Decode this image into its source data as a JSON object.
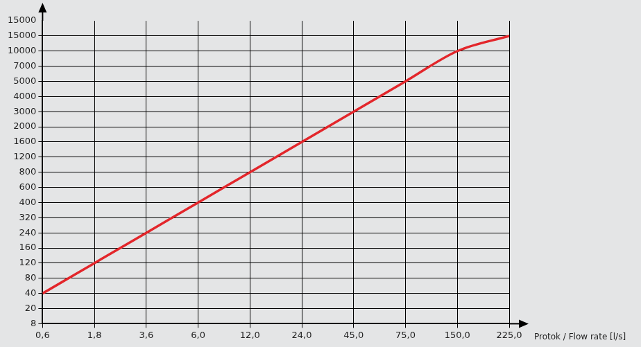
{
  "chart_data": {
    "type": "line",
    "x_label": "Protok / Flow rate [l/s]",
    "x": [
      0.6,
      1.8,
      3.6,
      6.0,
      12.0,
      24.0,
      45.0,
      75.0,
      150.0,
      225.0
    ],
    "values": [
      40,
      120,
      240,
      400,
      800,
      1600,
      3000,
      5000,
      10000,
      15000
    ],
    "color": "#e3262b",
    "xlim": [
      0.6,
      225.0
    ],
    "xticks": [
      {
        "value": 0.6,
        "label": "0,6"
      },
      {
        "value": 1.8,
        "label": "1,8"
      },
      {
        "value": 3.6,
        "label": "3,6"
      },
      {
        "value": 6.0,
        "label": "6,0"
      },
      {
        "value": 12.0,
        "label": "12,0"
      },
      {
        "value": 24.0,
        "label": "24,0"
      },
      {
        "value": 45.0,
        "label": "45,0"
      },
      {
        "value": 75.0,
        "label": "75,0"
      },
      {
        "value": 150.0,
        "label": "150,0"
      },
      {
        "value": 225.0,
        "label": "225,0"
      }
    ],
    "ylim": [
      8,
      15000
    ],
    "yticks": [
      8,
      20,
      40,
      80,
      120,
      160,
      240,
      320,
      400,
      600,
      800,
      1200,
      1600,
      2000,
      3000,
      4000,
      5000,
      7000,
      10000,
      15000,
      15000
    ],
    "grid": true
  }
}
